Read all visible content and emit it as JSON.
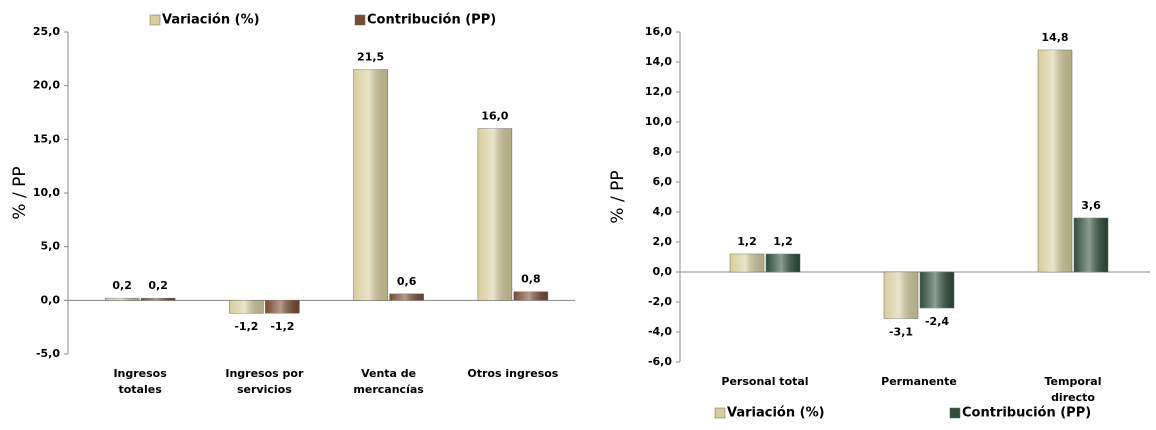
{
  "chart_data": [
    {
      "type": "bar",
      "y_label": "% / PP",
      "legend": "top",
      "categories": [
        "Ingresos totales",
        "Ingresos por servicios",
        "Venta de mercancías",
        "Otros ingresos"
      ],
      "series": [
        {
          "name": "Variación (%)",
          "color": "#d6cf9c",
          "values": [
            0.2,
            -1.2,
            21.5,
            16.0
          ],
          "value_labels": [
            "0,2",
            "-1,2",
            "21,5",
            "16,0"
          ]
        },
        {
          "name": "Contribución (PP)",
          "color": "#7a4a2e",
          "values": [
            0.2,
            -1.2,
            0.6,
            0.8
          ],
          "value_labels": [
            "0,2",
            "-1,2",
            "0,6",
            "0,8"
          ]
        }
      ],
      "ylim": [
        -5,
        25
      ],
      "yticks": [
        {
          "value": -5,
          "label": "-5,0"
        },
        {
          "value": 0,
          "label": "0,0"
        },
        {
          "value": 5,
          "label": "5,0"
        },
        {
          "value": 10,
          "label": "10,0"
        },
        {
          "value": 15,
          "label": "15,0"
        },
        {
          "value": 20,
          "label": "20,0"
        },
        {
          "value": 25,
          "label": "25,0"
        }
      ]
    },
    {
      "type": "bar",
      "y_label": "% / PP",
      "legend": "bottom",
      "categories": [
        "Personal total",
        "Permanente",
        "Temporal directo"
      ],
      "series": [
        {
          "name": "Variación (%)",
          "color": "#d6cf9c",
          "values": [
            1.2,
            -3.1,
            14.8
          ],
          "value_labels": [
            "1,2",
            "-3,1",
            "14,8"
          ]
        },
        {
          "name": "Contribución (PP)",
          "color": "#2e4d3a",
          "values": [
            1.2,
            -2.4,
            3.6
          ],
          "value_labels": [
            "1,2",
            "-2,4",
            "3,6"
          ]
        }
      ],
      "ylim": [
        -6,
        16
      ],
      "yticks": [
        {
          "value": -6,
          "label": "-6,0"
        },
        {
          "value": -4,
          "label": "-4,0"
        },
        {
          "value": -2,
          "label": "-2,0"
        },
        {
          "value": 0,
          "label": "0,0"
        },
        {
          "value": 2,
          "label": "2,0"
        },
        {
          "value": 4,
          "label": "4,0"
        },
        {
          "value": 6,
          "label": "6,0"
        },
        {
          "value": 8,
          "label": "8,0"
        },
        {
          "value": 10,
          "label": "10,0"
        },
        {
          "value": 12,
          "label": "12,0"
        },
        {
          "value": 14,
          "label": "14,0"
        },
        {
          "value": 16,
          "label": "16,0"
        }
      ]
    }
  ]
}
